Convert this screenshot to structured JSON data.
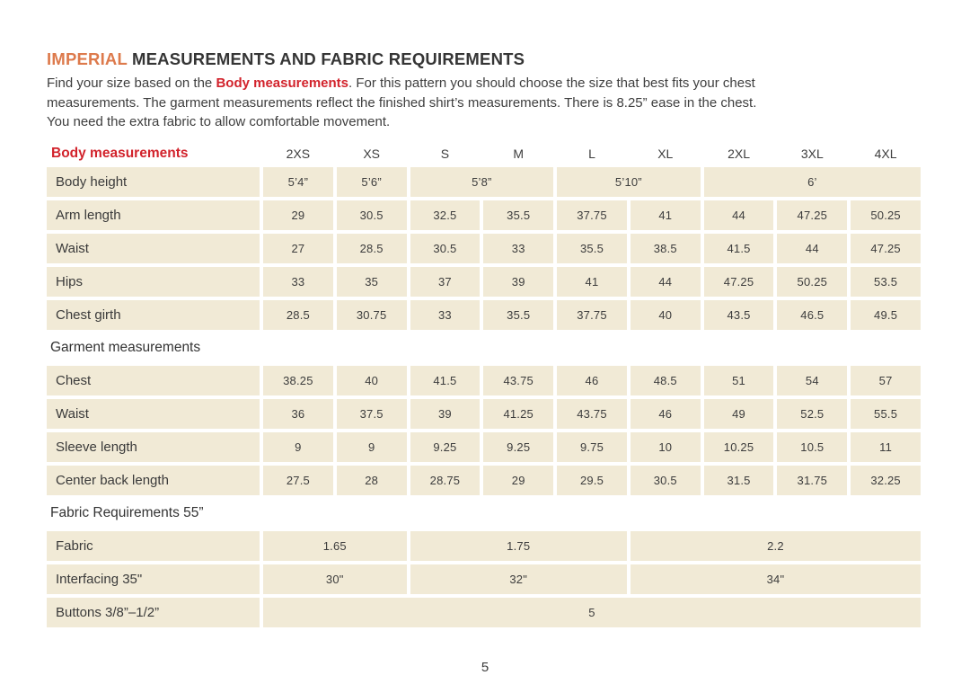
{
  "title": {
    "highlight": "IMPERIAL",
    "rest": " MEASUREMENTS AND FABRIC REQUIREMENTS"
  },
  "intro": {
    "line1_pre": "Find your size based on the ",
    "line1_bold": "Body measurements",
    "line1_post": ". For this pattern you should choose the size that best fits your chest",
    "line2": "measurements. The garment measurements reflect the finished shirt’s measurements. There is 8.25” ease in the chest.",
    "line3": "You need the extra fabric to allow comfortable movement."
  },
  "colors": {
    "accent_orange": "#DD7A4C",
    "accent_red": "#D2232C",
    "cell_beige": "#F1EAD6",
    "text_dark": "#3C3C3C"
  },
  "table": {
    "header": {
      "label": "Body measurements",
      "sizes": [
        "2XS",
        "XS",
        "S",
        "M",
        "L",
        "XL",
        "2XL",
        "3XL",
        "4XL"
      ]
    },
    "sections": [
      {
        "heading": "",
        "rows": [
          {
            "label": "Body height",
            "cells": [
              {
                "v": "5’4”",
                "span": 1
              },
              {
                "v": "5’6”",
                "span": 1
              },
              {
                "v": "5’8”",
                "span": 2
              },
              {
                "v": "5’10”",
                "span": 2
              },
              {
                "v": "6’",
                "span": 3
              }
            ]
          },
          {
            "label": "Arm length",
            "cells": [
              {
                "v": "29"
              },
              {
                "v": "30.5"
              },
              {
                "v": "32.5"
              },
              {
                "v": "35.5"
              },
              {
                "v": "37.75"
              },
              {
                "v": "41"
              },
              {
                "v": "44"
              },
              {
                "v": "47.25"
              },
              {
                "v": "50.25"
              }
            ]
          },
          {
            "label": "Waist",
            "cells": [
              {
                "v": "27"
              },
              {
                "v": "28.5"
              },
              {
                "v": "30.5"
              },
              {
                "v": "33"
              },
              {
                "v": "35.5"
              },
              {
                "v": "38.5"
              },
              {
                "v": "41.5"
              },
              {
                "v": "44"
              },
              {
                "v": "47.25"
              }
            ]
          },
          {
            "label": "Hips",
            "cells": [
              {
                "v": "33"
              },
              {
                "v": "35"
              },
              {
                "v": "37"
              },
              {
                "v": "39"
              },
              {
                "v": "41"
              },
              {
                "v": "44"
              },
              {
                "v": "47.25"
              },
              {
                "v": "50.25"
              },
              {
                "v": "53.5"
              }
            ]
          },
          {
            "label": "Chest girth",
            "cells": [
              {
                "v": "28.5"
              },
              {
                "v": "30.75"
              },
              {
                "v": "33"
              },
              {
                "v": "35.5"
              },
              {
                "v": "37.75"
              },
              {
                "v": "40"
              },
              {
                "v": "43.5"
              },
              {
                "v": "46.5"
              },
              {
                "v": "49.5"
              }
            ]
          }
        ]
      },
      {
        "heading": "Garment measurements",
        "rows": [
          {
            "label": "Chest",
            "cells": [
              {
                "v": "38.25"
              },
              {
                "v": "40"
              },
              {
                "v": "41.5"
              },
              {
                "v": "43.75"
              },
              {
                "v": "46"
              },
              {
                "v": "48.5"
              },
              {
                "v": "51"
              },
              {
                "v": "54"
              },
              {
                "v": "57"
              }
            ]
          },
          {
            "label": "Waist",
            "cells": [
              {
                "v": "36"
              },
              {
                "v": "37.5"
              },
              {
                "v": "39"
              },
              {
                "v": "41.25"
              },
              {
                "v": "43.75"
              },
              {
                "v": "46"
              },
              {
                "v": "49"
              },
              {
                "v": "52.5"
              },
              {
                "v": "55.5"
              }
            ]
          },
          {
            "label": "Sleeve length",
            "cells": [
              {
                "v": "9"
              },
              {
                "v": "9"
              },
              {
                "v": "9.25"
              },
              {
                "v": "9.25"
              },
              {
                "v": "9.75"
              },
              {
                "v": "10"
              },
              {
                "v": "10.25"
              },
              {
                "v": "10.5"
              },
              {
                "v": "11"
              }
            ]
          },
          {
            "label": "Center back length",
            "cells": [
              {
                "v": "27.5"
              },
              {
                "v": "28"
              },
              {
                "v": "28.75"
              },
              {
                "v": "29"
              },
              {
                "v": "29.5"
              },
              {
                "v": "30.5"
              },
              {
                "v": "31.5"
              },
              {
                "v": "31.75"
              },
              {
                "v": "32.25"
              }
            ]
          }
        ]
      },
      {
        "heading": "Fabric Requirements 55”",
        "rows": [
          {
            "label": "Fabric",
            "cells": [
              {
                "v": "1.65",
                "span": 2
              },
              {
                "v": "1.75",
                "span": 3
              },
              {
                "v": "2.2",
                "span": 4
              }
            ]
          },
          {
            "label": "Interfacing 35\"",
            "cells": [
              {
                "v": "30\"",
                "span": 2
              },
              {
                "v": "32\"",
                "span": 3
              },
              {
                "v": "34\"",
                "span": 4
              }
            ]
          },
          {
            "label": "Buttons 3/8”–1/2”",
            "cells": [
              {
                "v": "5",
                "span": 9
              }
            ]
          }
        ]
      }
    ]
  },
  "footer": {
    "page_number": "5"
  }
}
